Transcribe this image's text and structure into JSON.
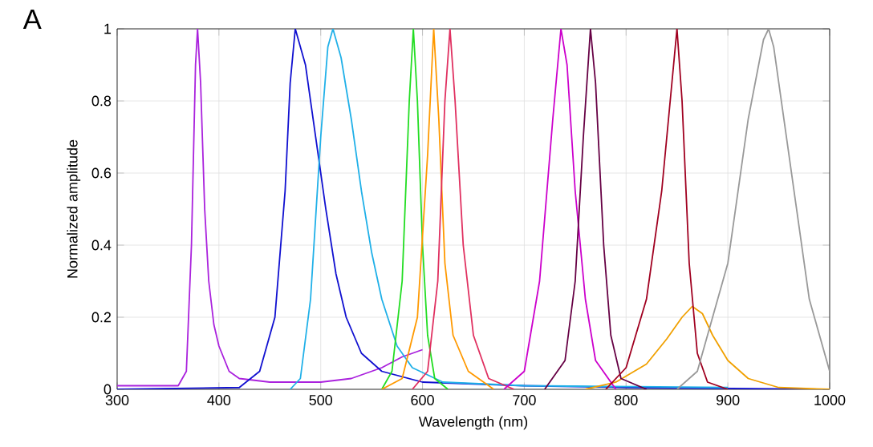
{
  "chart_data": {
    "type": "line",
    "title": "A",
    "xlabel": "Wavelength (nm)",
    "ylabel": "Normalized amplitude",
    "xlim": [
      300,
      1000
    ],
    "ylim": [
      0,
      1
    ],
    "xticks": [
      300,
      400,
      500,
      600,
      700,
      800,
      900,
      1000
    ],
    "yticks": [
      0,
      0.2,
      0.4,
      0.6,
      0.8,
      1
    ],
    "grid": true,
    "marker": "none",
    "line_style": "solid",
    "series": [
      {
        "color": "#aa22dd",
        "x": [
          300,
          360,
          368,
          373,
          377,
          379,
          382,
          386,
          390,
          395,
          400,
          410,
          420,
          450,
          500,
          530,
          560,
          580,
          600
        ],
        "values": [
          0.01,
          0.01,
          0.05,
          0.4,
          0.9,
          1.0,
          0.85,
          0.5,
          0.3,
          0.18,
          0.12,
          0.05,
          0.03,
          0.02,
          0.02,
          0.03,
          0.06,
          0.09,
          0.11
        ]
      },
      {
        "color": "#1010d0",
        "x": [
          300,
          420,
          440,
          455,
          465,
          470,
          475,
          480,
          485,
          495,
          505,
          515,
          525,
          540,
          560,
          600,
          700,
          800,
          1000
        ],
        "values": [
          0,
          0.005,
          0.05,
          0.2,
          0.55,
          0.85,
          1.0,
          0.95,
          0.9,
          0.7,
          0.5,
          0.32,
          0.2,
          0.1,
          0.05,
          0.02,
          0.01,
          0.005,
          0
        ]
      },
      {
        "color": "#20b0e8",
        "x": [
          470,
          480,
          490,
          500,
          507,
          512,
          520,
          530,
          540,
          550,
          560,
          575,
          590,
          620,
          700,
          900
        ],
        "values": [
          0,
          0.03,
          0.25,
          0.7,
          0.95,
          1.0,
          0.92,
          0.75,
          0.55,
          0.38,
          0.25,
          0.12,
          0.06,
          0.02,
          0.01,
          0.005
        ]
      },
      {
        "color": "#22dd22",
        "x": [
          560,
          570,
          580,
          587,
          591,
          595,
          600,
          605,
          612,
          625
        ],
        "values": [
          0,
          0.05,
          0.3,
          0.8,
          1.0,
          0.8,
          0.4,
          0.15,
          0.03,
          0
        ]
      },
      {
        "color": "#ff9900",
        "x": [
          560,
          580,
          595,
          605,
          611,
          616,
          622,
          630,
          645,
          670
        ],
        "values": [
          0,
          0.03,
          0.2,
          0.65,
          1.0,
          0.75,
          0.35,
          0.15,
          0.05,
          0
        ]
      },
      {
        "color": "#f0a000",
        "x": [
          760,
          790,
          820,
          840,
          855,
          865,
          875,
          885,
          900,
          920,
          950,
          1000
        ],
        "values": [
          0,
          0.02,
          0.07,
          0.14,
          0.2,
          0.23,
          0.21,
          0.15,
          0.08,
          0.03,
          0.005,
          0
        ]
      },
      {
        "color": "#e03060",
        "x": [
          590,
          605,
          615,
          622,
          627,
          632,
          640,
          650,
          665,
          690
        ],
        "values": [
          0,
          0.05,
          0.3,
          0.8,
          1.0,
          0.8,
          0.4,
          0.15,
          0.03,
          0
        ]
      },
      {
        "color": "#cc00cc",
        "x": [
          680,
          700,
          715,
          728,
          736,
          742,
          750,
          760,
          770,
          790
        ],
        "values": [
          0,
          0.05,
          0.3,
          0.75,
          1.0,
          0.9,
          0.55,
          0.25,
          0.08,
          0
        ]
      },
      {
        "color": "#660044",
        "x": [
          720,
          740,
          750,
          758,
          765,
          770,
          778,
          785,
          795,
          820
        ],
        "values": [
          0,
          0.08,
          0.3,
          0.7,
          1.0,
          0.85,
          0.4,
          0.15,
          0.03,
          0
        ]
      },
      {
        "color": "#a00020",
        "x": [
          780,
          800,
          820,
          835,
          845,
          850,
          855,
          862,
          870,
          880,
          900
        ],
        "values": [
          0,
          0.06,
          0.25,
          0.55,
          0.85,
          1.0,
          0.8,
          0.35,
          0.1,
          0.02,
          0
        ]
      },
      {
        "color": "#999999",
        "x": [
          850,
          870,
          900,
          920,
          935,
          940,
          945,
          960,
          980,
          1000
        ],
        "values": [
          0,
          0.05,
          0.35,
          0.75,
          0.97,
          1.0,
          0.95,
          0.65,
          0.25,
          0.05
        ]
      }
    ]
  }
}
